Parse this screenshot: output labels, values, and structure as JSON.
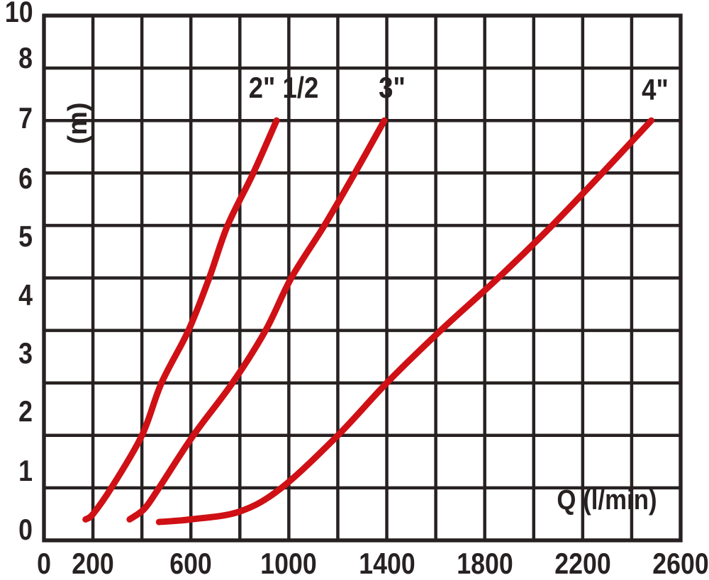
{
  "chart_data": {
    "type": "line",
    "title": "",
    "xlabel": "Q (l/min)",
    "ylabel": "(m)",
    "xlim": [
      0,
      2600
    ],
    "ylim": [
      0,
      10
    ],
    "x_gridline_step": 200,
    "y_gridline_step": 1,
    "grid": true,
    "legend_position": "labels-above-curve-tips",
    "x_ticks": [
      0,
      200,
      600,
      1000,
      1400,
      1800,
      2200,
      2600
    ],
    "y_tick_labels": [
      "10",
      "8",
      "7",
      "6",
      "5",
      "4",
      "3",
      "2",
      "1",
      "0"
    ],
    "background_color": "#ffffff",
    "grid_color": "#272122",
    "text_color": "#272122",
    "curve_color": "#cf1015",
    "series": [
      {
        "name": "2\" 1/2",
        "points": [
          [
            170,
            0.4
          ],
          [
            200,
            0.5
          ],
          [
            275,
            1.0
          ],
          [
            400,
            2.0
          ],
          [
            480,
            3.0
          ],
          [
            590,
            4.0
          ],
          [
            675,
            5.0
          ],
          [
            750,
            6.0
          ],
          [
            855,
            7.0
          ],
          [
            950,
            8.0
          ]
        ]
      },
      {
        "name": "3\"",
        "points": [
          [
            350,
            0.4
          ],
          [
            410,
            0.6
          ],
          [
            470,
            1.0
          ],
          [
            610,
            2.0
          ],
          [
            770,
            3.0
          ],
          [
            905,
            4.0
          ],
          [
            1010,
            5.0
          ],
          [
            1145,
            6.0
          ],
          [
            1270,
            7.0
          ],
          [
            1390,
            8.0
          ]
        ]
      },
      {
        "name": "4\"",
        "points": [
          [
            470,
            0.35
          ],
          [
            600,
            0.4
          ],
          [
            800,
            0.55
          ],
          [
            970,
            1.0
          ],
          [
            1200,
            2.0
          ],
          [
            1400,
            3.0
          ],
          [
            1620,
            4.0
          ],
          [
            1855,
            5.0
          ],
          [
            2075,
            6.0
          ],
          [
            2280,
            7.0
          ],
          [
            2480,
            8.0
          ]
        ]
      }
    ]
  }
}
